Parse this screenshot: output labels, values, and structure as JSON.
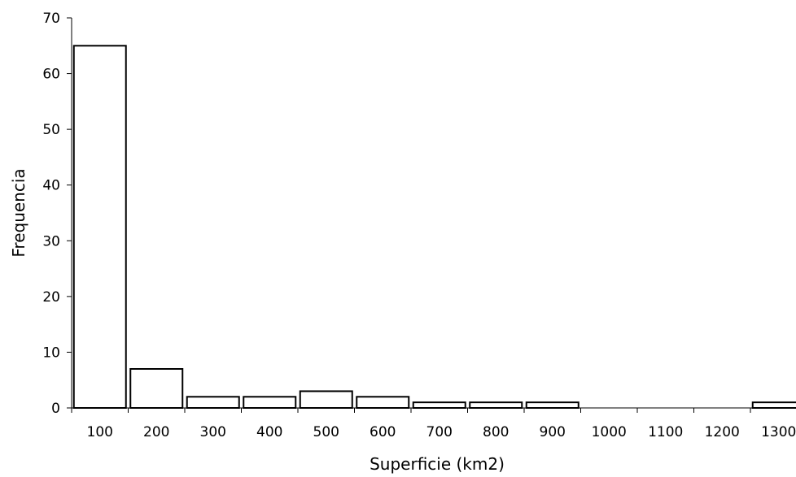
{
  "chart_data": {
    "type": "bar",
    "title": "",
    "xlabel": "Superficie (km2)",
    "ylabel": "Frequencia",
    "categories": [
      "100",
      "200",
      "300",
      "400",
      "500",
      "600",
      "700",
      "800",
      "900",
      "1000",
      "1100",
      "1200",
      "1300"
    ],
    "values": [
      65,
      7,
      2,
      2,
      3,
      2,
      1,
      1,
      1,
      0,
      0,
      0,
      1
    ],
    "ylim": [
      0,
      70
    ],
    "yticks": [
      "0",
      "10",
      "20",
      "30",
      "40",
      "50",
      "60",
      "70"
    ],
    "grid": false,
    "legend": "none",
    "colors": {
      "bar_fill": "#ffffff",
      "bar_stroke": "#000000",
      "axis": "#000000"
    }
  }
}
